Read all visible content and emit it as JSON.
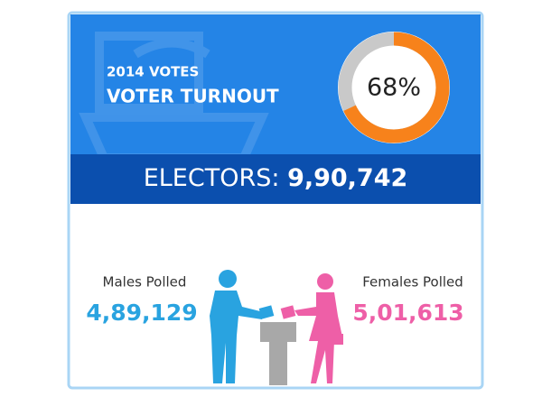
{
  "header": {
    "subtitle": "2014 VOTES",
    "title": "VOTER TURNOUT"
  },
  "turnout": {
    "value": 68,
    "label": "68%"
  },
  "electors": {
    "label": "ELECTORS:",
    "value": "9,90,742"
  },
  "males": {
    "label": "Males Polled",
    "value": "4,89,129"
  },
  "females": {
    "label": "Females Polled",
    "value": "5,01,613"
  }
}
